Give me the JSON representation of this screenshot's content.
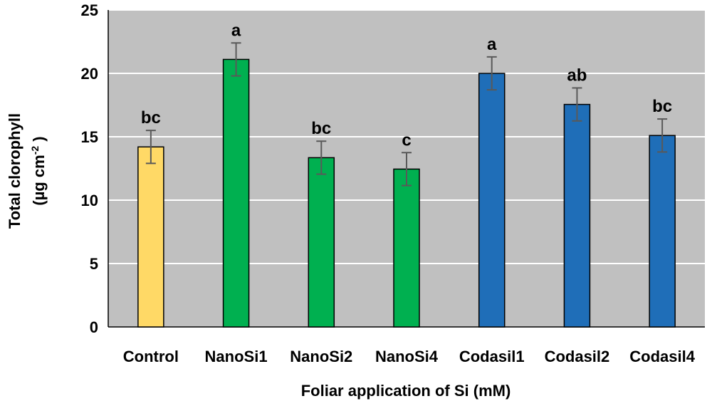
{
  "chart_data": {
    "type": "bar",
    "title": "",
    "xlabel": "Foliar application of Si (mM)",
    "ylabel_line1": "Total clorophyll",
    "ylabel_line2_prefix": "(µg cm",
    "ylabel_line2_sup": "-2",
    "ylabel_line2_suffix": " )",
    "ylim": [
      0,
      25
    ],
    "yticks": [
      0,
      5,
      10,
      15,
      20,
      25
    ],
    "grid": true,
    "categories": [
      "Control",
      "NanoSi1",
      "NanoSi2",
      "NanoSi4",
      "Codasil1",
      "Codasil2",
      "Codasil4"
    ],
    "values": [
      14.2,
      21.1,
      13.35,
      12.45,
      20.0,
      17.55,
      15.1
    ],
    "errors": [
      1.3,
      1.3,
      1.3,
      1.3,
      1.3,
      1.3,
      1.3
    ],
    "letters": [
      "bc",
      "a",
      "bc",
      "c",
      "a",
      "ab",
      "bc"
    ],
    "colors": [
      "#FFD966",
      "#00B050",
      "#00B050",
      "#00B050",
      "#1F6EB8",
      "#1F6EB8",
      "#1F6EB8"
    ],
    "plot_background": "#C0C0C0",
    "gridline_color": "#FFFFFF",
    "errorbar_color": "#595959"
  }
}
